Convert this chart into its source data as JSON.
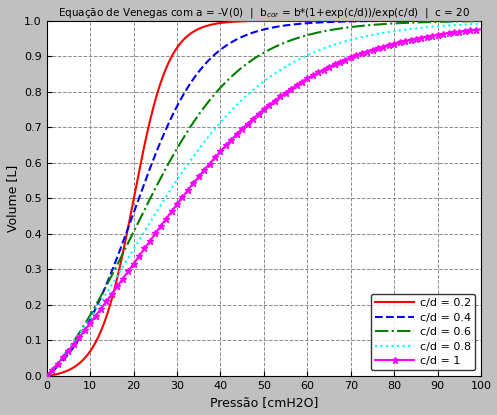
{
  "title": "Equação de Venegas com a = -V(0)  |  b_cor = b*(1+exp(c/d))/exp(c/d)  |  c = 20",
  "xlabel": "Pressão [cmH2O]",
  "ylabel": "Volume [L]",
  "xlim": [
    0,
    100
  ],
  "ylim": [
    0,
    1.0
  ],
  "c_param": 20,
  "cd_ratios": [
    0.2,
    0.4,
    0.6,
    0.8,
    1.0
  ],
  "colors": [
    "red",
    "blue",
    "green",
    "cyan",
    "magenta"
  ],
  "linestyles": [
    "-",
    "--",
    "-.",
    ":",
    "-"
  ],
  "markers": [
    null,
    null,
    null,
    null,
    "*"
  ],
  "marker_every": 25,
  "legend_labels": [
    "c/d = 0.2",
    "c/d = 0.4",
    "c/d = 0.6",
    "c/d = 0.8",
    "c/d = 1"
  ],
  "grid_color": "#808080",
  "bg_color": "#c0c0c0",
  "plot_bg": "#ffffff",
  "linewidth": 1.5,
  "title_fontsize": 7.5,
  "label_fontsize": 9,
  "tick_fontsize": 8,
  "legend_fontsize": 8
}
